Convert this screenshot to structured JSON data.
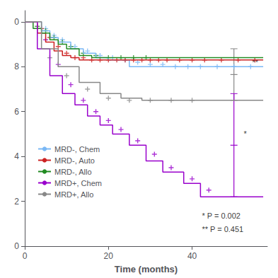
{
  "chart_data": {
    "type": "step",
    "xlabel": "Time (months)",
    "xlim": [
      0,
      58
    ],
    "ylim": [
      0,
      1.05
    ],
    "xticks": [
      0,
      20,
      40
    ],
    "yticks": [
      0,
      {
        "value": 0.2,
        "label": "2"
      },
      {
        "value": 0.4,
        "label": "4"
      },
      {
        "value": 0.6,
        "label": "6"
      },
      {
        "value": 0.8,
        "label": "8"
      },
      {
        "value": 1.0,
        "label": "0"
      }
    ],
    "grid": false,
    "legend": "left",
    "series": [
      {
        "name": "MRD-, Chem",
        "color": "#7AB8F5",
        "x": [
          0,
          4,
          6,
          8,
          11,
          14,
          17,
          20,
          25,
          57
        ],
        "values": [
          1.0,
          0.96,
          0.93,
          0.91,
          0.88,
          0.86,
          0.84,
          0.83,
          0.8,
          0.8
        ],
        "censor_x": [
          5,
          7,
          9,
          12,
          15,
          18,
          21,
          24,
          27,
          30,
          33,
          36,
          39,
          42,
          46,
          50,
          54
        ],
        "censor_values": [
          0.97,
          0.94,
          0.92,
          0.89,
          0.87,
          0.85,
          0.84,
          0.83,
          0.82,
          0.81,
          0.81,
          0.8,
          0.8,
          0.8,
          0.8,
          0.8,
          0.8
        ]
      },
      {
        "name": "MRD-, Auto",
        "color": "#CC2222",
        "x": [
          0,
          3,
          5,
          7,
          9,
          11,
          13,
          17,
          57
        ],
        "values": [
          1.0,
          0.95,
          0.91,
          0.87,
          0.85,
          0.84,
          0.83,
          0.83,
          0.83
        ],
        "censor_x": [
          4,
          6,
          8,
          10,
          12,
          14,
          16,
          18,
          20,
          22,
          24,
          26,
          28,
          30,
          32,
          34,
          37,
          40,
          43,
          47,
          51,
          55
        ],
        "censor_values": [
          0.97,
          0.93,
          0.89,
          0.86,
          0.84,
          0.84,
          0.83,
          0.83,
          0.83,
          0.83,
          0.83,
          0.83,
          0.83,
          0.83,
          0.83,
          0.83,
          0.83,
          0.83,
          0.83,
          0.83,
          0.83,
          0.83
        ]
      },
      {
        "name": "MRD-, Allo",
        "color": "#228B22",
        "x": [
          0,
          2,
          4,
          6,
          8,
          10,
          13,
          16,
          57
        ],
        "values": [
          1.0,
          0.97,
          0.95,
          0.92,
          0.9,
          0.88,
          0.85,
          0.84,
          0.84
        ],
        "censor_x": [
          3,
          5,
          7,
          9,
          11,
          14,
          17,
          20,
          23,
          26,
          29
        ],
        "censor_values": [
          0.98,
          0.96,
          0.93,
          0.91,
          0.89,
          0.86,
          0.85,
          0.84,
          0.84,
          0.84,
          0.84
        ]
      },
      {
        "name": "MRD+, Chem",
        "color": "#9900CC",
        "x": [
          0,
          3,
          6,
          9,
          12,
          15,
          18,
          21,
          25,
          29,
          33,
          38,
          42,
          57
        ],
        "values": [
          1.0,
          0.88,
          0.76,
          0.68,
          0.63,
          0.58,
          0.54,
          0.5,
          0.45,
          0.38,
          0.33,
          0.28,
          0.22,
          0.22
        ],
        "censor_x": [
          5,
          8,
          11,
          14,
          17,
          20,
          23,
          27,
          31,
          35,
          40,
          44
        ],
        "censor_values": [
          0.92,
          0.81,
          0.72,
          0.65,
          0.6,
          0.56,
          0.52,
          0.47,
          0.41,
          0.35,
          0.3,
          0.25
        ]
      },
      {
        "name": "MRD+, Allo",
        "color": "#888888",
        "x": [
          0,
          4,
          8,
          13,
          18,
          23,
          28,
          57
        ],
        "values": [
          1.0,
          0.88,
          0.8,
          0.73,
          0.68,
          0.66,
          0.65,
          0.65
        ],
        "censor_x": [
          6,
          10,
          15,
          20,
          25,
          30,
          35,
          40
        ],
        "censor_values": [
          0.84,
          0.76,
          0.7,
          0.66,
          0.65,
          0.65,
          0.65,
          0.65
        ]
      }
    ],
    "error_bars": [
      {
        "x": 50,
        "value": 0.765,
        "low": 0.65,
        "high": 0.88,
        "color": "#888888"
      },
      {
        "x": 50,
        "value": 0.45,
        "low": 0.22,
        "high": 0.68,
        "color": "#9900CC"
      }
    ],
    "annotations": [
      {
        "text": "*",
        "x": 52,
        "y": 0.5
      },
      {
        "text": "**",
        "x": 54,
        "y": 0.82
      },
      {
        "text": "* P = 0.002",
        "x": 42,
        "y": 0.135
      },
      {
        "text": "** P = 0.451",
        "x": 42,
        "y": 0.075
      }
    ]
  }
}
